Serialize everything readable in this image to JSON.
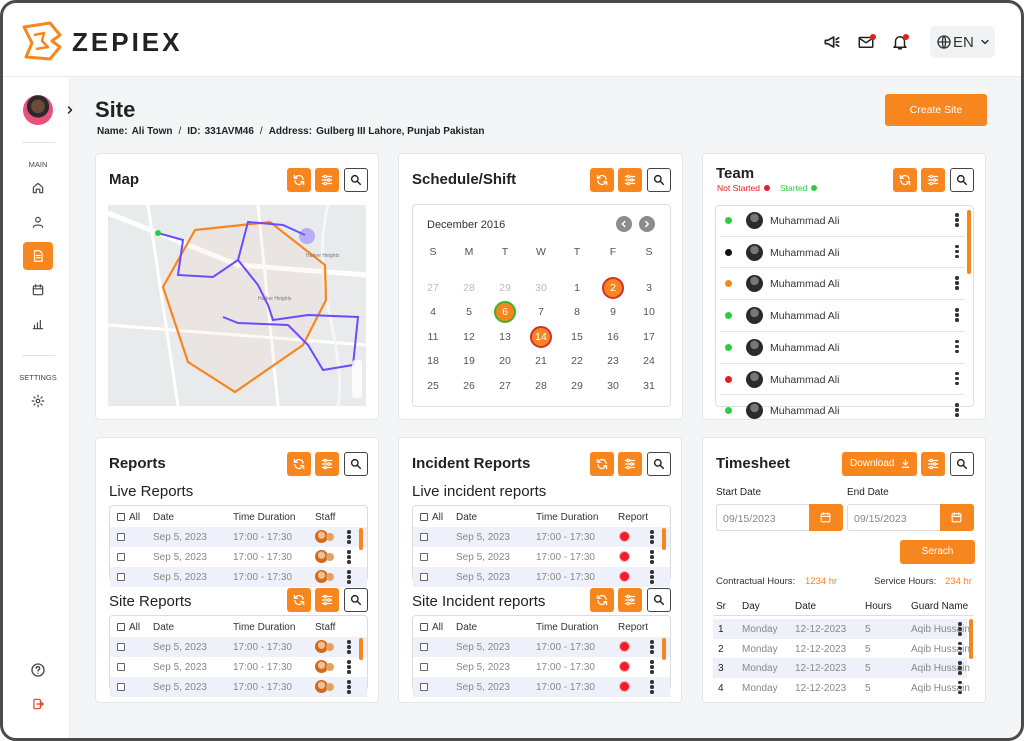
{
  "header": {
    "brand": "ZEPIEX",
    "language": "EN"
  },
  "sidebar": {
    "main_label": "MAIN",
    "settings_label": "SETTINGS"
  },
  "page": {
    "title": "Site",
    "separator": "/",
    "info": [
      {
        "label": "Name:",
        "value": "Ali Town"
      },
      {
        "label": "ID:",
        "value": "331AVM46"
      },
      {
        "label": "Address:",
        "value": "Gulberg III Lahore, Punjab Pakistan"
      }
    ],
    "create_button": "Create Site"
  },
  "map": {
    "title": "Map",
    "place_label": "Harker Heights"
  },
  "schedule": {
    "title": "Schedule/Shift",
    "month": "December 2016",
    "weekdays": [
      "S",
      "M",
      "T",
      "W",
      "T",
      "F",
      "S"
    ],
    "leading_days": [
      27,
      28,
      29,
      30
    ],
    "days": [
      1,
      {
        "value": 2,
        "ring": "#d32f2f"
      },
      3,
      4,
      5,
      {
        "value": 6,
        "ring": "#43b02a"
      },
      7,
      8,
      9,
      10,
      11,
      12,
      13,
      {
        "value": 14,
        "ring": "#d32f2f"
      },
      15,
      16,
      17,
      18,
      19,
      20,
      21,
      22,
      23,
      24,
      25,
      26,
      27,
      28,
      29,
      30,
      31
    ]
  },
  "team": {
    "title": "Team",
    "legend": [
      {
        "label": "Not Started",
        "color": "#e02020"
      },
      {
        "label": "Started",
        "color": "#2ecc40"
      }
    ],
    "members": [
      {
        "name": "Muhammad Ali",
        "color": "#2ecc40"
      },
      {
        "name": "Muhammad Ali",
        "color": "#111111"
      },
      {
        "name": "Muhammad Ali",
        "color": "#f7861e"
      },
      {
        "name": "Muhammad Ali",
        "color": "#2ecc40"
      },
      {
        "name": "Muhammad Ali",
        "color": "#2ecc40"
      },
      {
        "name": "Muhammad Ali",
        "color": "#e02020"
      },
      {
        "name": "Muhammad Ali",
        "color": "#2ecc40"
      }
    ]
  },
  "reports": {
    "title": "Reports",
    "tables": [
      {
        "title": "Live Reports",
        "columns": [
          "All",
          "Date",
          "Time Duration",
          "Staff"
        ],
        "rows": [
          [
            "Sep 5, 2023",
            "17:00 - 17:30"
          ],
          [
            "Sep 5, 2023",
            "17:00 - 17:30"
          ],
          [
            "Sep 5, 2023",
            "17:00 - 17:30"
          ]
        ]
      },
      {
        "title": "Site Reports",
        "columns": [
          "All",
          "Date",
          "Time Duration",
          "Staff"
        ],
        "rows": [
          [
            "Sep 5, 2023",
            "17:00 - 17:30"
          ],
          [
            "Sep 5, 2023",
            "17:00 - 17:30"
          ],
          [
            "Sep 5, 2023",
            "17:00 - 17:30"
          ]
        ]
      }
    ]
  },
  "incident_reports": {
    "title": "Incident Reports",
    "tables": [
      {
        "title": "Live incident reports",
        "columns": [
          "All",
          "Date",
          "Time Duration",
          "Report"
        ],
        "rows": [
          [
            "Sep 5, 2023",
            "17:00 - 17:30"
          ],
          [
            "Sep 5, 2023",
            "17:00 - 17:30"
          ],
          [
            "Sep 5, 2023",
            "17:00 - 17:30"
          ]
        ]
      },
      {
        "title": "Site Incident reports",
        "columns": [
          "All",
          "Date",
          "Time Duration",
          "Report"
        ],
        "rows": [
          [
            "Sep 5, 2023",
            "17:00 - 17:30"
          ],
          [
            "Sep 5, 2023",
            "17:00 - 17:30"
          ],
          [
            "Sep 5, 2023",
            "17:00 - 17:30"
          ]
        ]
      }
    ]
  },
  "timesheet": {
    "title": "Timesheet",
    "download_button": "Download",
    "start_label": "Start Date",
    "start_value": "09/15/2023",
    "end_label": "End Date",
    "end_value": "09/15/2023",
    "search_button": "Serach",
    "contractual_label": "Contractual Hours:",
    "contractual_value": "1234 hr",
    "service_label": "Service Hours:",
    "service_value": "234 hr",
    "columns": [
      "Sr",
      "Day",
      "Date",
      "Hours",
      "Guard Name"
    ],
    "rows": [
      [
        1,
        "Monday",
        "12-12-2023",
        5,
        "Aqib Hussain"
      ],
      [
        2,
        "Monday",
        "12-12-2023",
        5,
        "Aqib Hussain"
      ],
      [
        3,
        "Monday",
        "12-12-2023",
        5,
        "Aqib Hussain"
      ],
      [
        4,
        "Monday",
        "12-12-2023",
        5,
        "Aqib Hussain"
      ]
    ]
  }
}
